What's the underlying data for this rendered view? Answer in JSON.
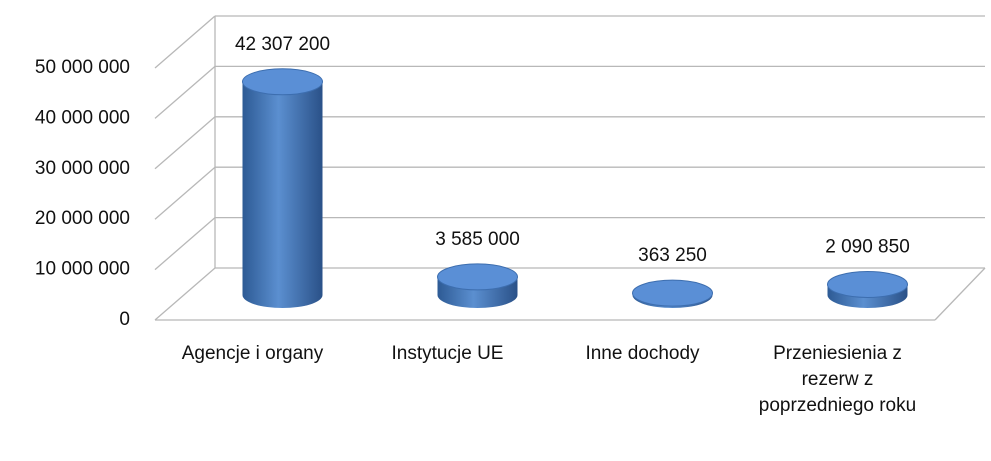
{
  "chart_data": {
    "type": "bar",
    "categories": [
      "Agencje i organy",
      "Instytucje UE",
      "Inne dochody",
      "Przeniesienia z rezerw z poprzedniego roku"
    ],
    "values": [
      42307200,
      3585000,
      363250,
      2090850
    ],
    "value_labels": [
      "42 307 200",
      "3 585 000",
      "363 250",
      "2 090 850"
    ],
    "color": "#4a7ebb",
    "ylim": [
      0,
      50000000
    ],
    "yticks": [
      0,
      {
        "value": 10000000,
        "label": "10 000 000"
      },
      {
        "value": 20000000,
        "label": "20 000 000"
      },
      {
        "value": 30000000,
        "label": "30 000 000"
      },
      {
        "value": 40000000,
        "label": "40 000 000"
      },
      {
        "value": 50000000,
        "label": "50 000 000"
      }
    ],
    "grid": true
  }
}
